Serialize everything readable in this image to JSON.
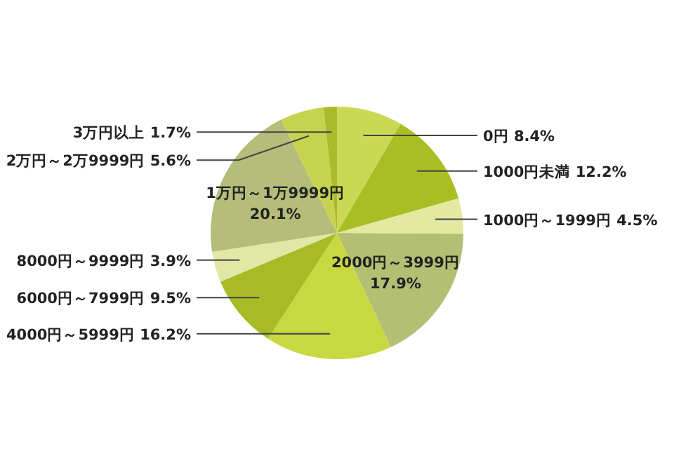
{
  "chart_data": {
    "type": "pie",
    "categories": [
      "0円",
      "1000円未満",
      "1000円～1999円",
      "2000円～3999円",
      "4000円～5999円",
      "6000円～7999円",
      "8000円～9999円",
      "1万円～1万9999円",
      "2万円～2万9999円",
      "3万円以上"
    ],
    "values": [
      8.4,
      12.2,
      4.5,
      17.9,
      16.2,
      9.5,
      3.9,
      20.1,
      5.6,
      1.7
    ],
    "colors": [
      "#c9d955",
      "#a9be22",
      "#e3e9a0",
      "#b3bf73",
      "#c8d840",
      "#a8bb26",
      "#e1e8a5",
      "#b5bd7a",
      "#c5d34e",
      "#a9bb2a"
    ],
    "value_labels": [
      "8.4%",
      "12.2%",
      "4.5%",
      "17.9%",
      "16.2%",
      "9.5%",
      "3.9%",
      "20.1%",
      "5.6%",
      "1.7%"
    ]
  }
}
